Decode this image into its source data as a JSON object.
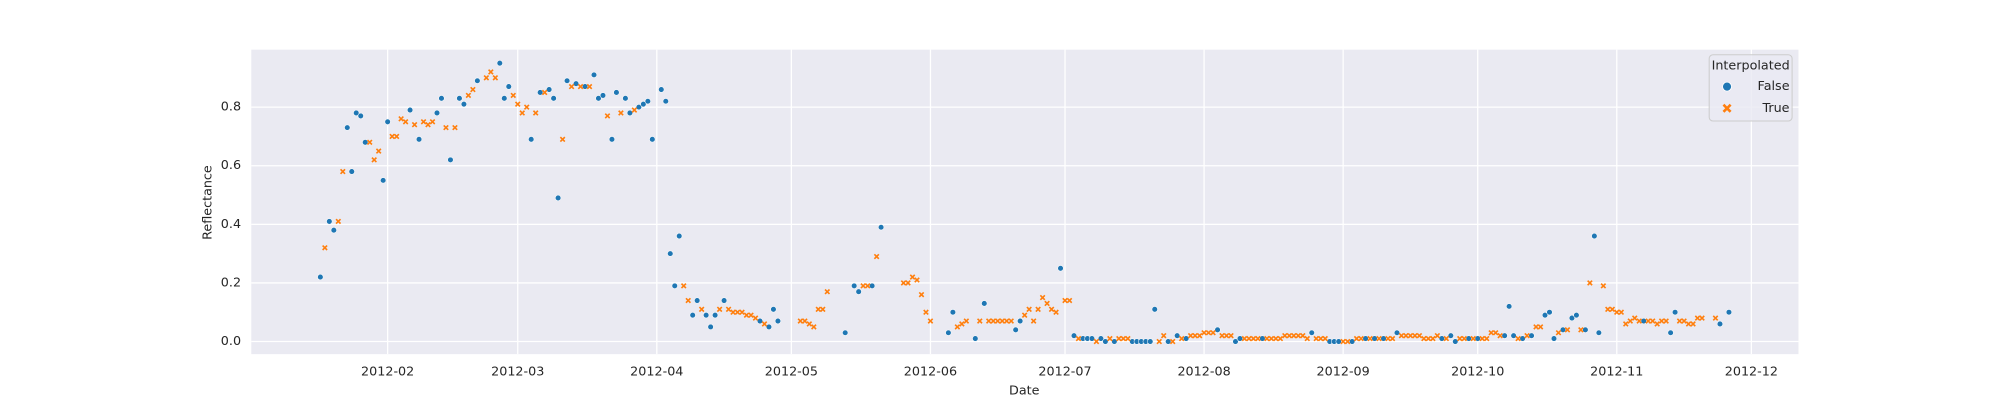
{
  "chart_data": {
    "type": "scatter",
    "xlabel": "Date",
    "ylabel": "Reflectance",
    "legend_title": "Interpolated",
    "legend": "upper right",
    "grid": true,
    "xlim": [
      15340.6,
      15685.5
    ],
    "xticks": [
      {
        "value": 15371,
        "label": "2012-02"
      },
      {
        "value": 15400,
        "label": "2012-03"
      },
      {
        "value": 15431,
        "label": "2012-04"
      },
      {
        "value": 15461,
        "label": "2012-05"
      },
      {
        "value": 15492,
        "label": "2012-06"
      },
      {
        "value": 15522,
        "label": "2012-07"
      },
      {
        "value": 15553,
        "label": "2012-08"
      },
      {
        "value": 15584,
        "label": "2012-09"
      },
      {
        "value": 15614,
        "label": "2012-10"
      },
      {
        "value": 15645,
        "label": "2012-11"
      },
      {
        "value": 15675,
        "label": "2012-12"
      }
    ],
    "ylim": [
      -0.043,
      0.996
    ],
    "yticks": [
      {
        "value": 0,
        "label": "0.0"
      },
      0.2,
      0.4,
      0.6,
      0.8
    ],
    "series": [
      {
        "name": "False",
        "color": "#1f77b4",
        "marker": "o",
        "x": [
          15356,
          15358,
          15359,
          15362,
          15363,
          15364,
          15365,
          15366,
          15370,
          15371,
          15376,
          15378,
          15382,
          15383,
          15385,
          15387,
          15388,
          15391,
          15396,
          15397,
          15398,
          15403,
          15405,
          15407,
          15408,
          15409,
          15411,
          15413,
          15415,
          15417,
          15418,
          15419,
          15421,
          15422,
          15424,
          15425,
          15427,
          15428,
          15429,
          15430,
          15432,
          15433,
          15434,
          15435,
          15436,
          15439,
          15440,
          15442,
          15443,
          15444,
          15446,
          15454,
          15456,
          15457,
          15458,
          15473,
          15475,
          15476,
          15479,
          15481,
          15496,
          15497,
          15502,
          15504,
          15511,
          15512,
          15521,
          15524,
          15526,
          15527,
          15528,
          15530,
          15531,
          15533,
          15537,
          15538,
          15539,
          15540,
          15541,
          15542,
          15545,
          15547,
          15549,
          15556,
          15560,
          15561,
          15566,
          15577,
          15581,
          15582,
          15583,
          15586,
          15589,
          15591,
          15593,
          15596,
          15606,
          15608,
          15609,
          15612,
          15614,
          15620,
          15621,
          15622,
          15624,
          15626,
          15629,
          15630,
          15631,
          15633,
          15635,
          15636,
          15638,
          15640,
          15641,
          15651,
          15657,
          15658,
          15668,
          15670
        ],
        "values": [
          0.22,
          0.41,
          0.38,
          0.73,
          0.58,
          0.78,
          0.77,
          0.68,
          0.55,
          0.75,
          0.79,
          0.69,
          0.78,
          0.83,
          0.62,
          0.83,
          0.81,
          0.89,
          0.95,
          0.83,
          0.87,
          0.69,
          0.85,
          0.86,
          0.83,
          0.49,
          0.89,
          0.88,
          0.87,
          0.91,
          0.83,
          0.84,
          0.69,
          0.85,
          0.83,
          0.78,
          0.8,
          0.81,
          0.82,
          0.69,
          0.86,
          0.82,
          0.3,
          0.19,
          0.36,
          0.09,
          0.14,
          0.09,
          0.05,
          0.09,
          0.14,
          0.07,
          0.05,
          0.11,
          0.07,
          0.03,
          0.19,
          0.17,
          0.19,
          0.39,
          0.03,
          0.1,
          0.01,
          0.13,
          0.04,
          0.07,
          0.25,
          0.02,
          0.01,
          0.01,
          0.01,
          0.01,
          0,
          0,
          0,
          0,
          0,
          0,
          0,
          0.11,
          0,
          0.02,
          0.01,
          0.04,
          0,
          0.01,
          0.01,
          0.03,
          0,
          0,
          0,
          0,
          0.01,
          0.01,
          0.01,
          0.03,
          0.01,
          0.02,
          0,
          0.01,
          0.01,
          0.02,
          0.12,
          0.02,
          0.01,
          0.02,
          0.09,
          0.1,
          0.01,
          0.04,
          0.08,
          0.09,
          0.04,
          0.36,
          0.03,
          0.07,
          0.03,
          0.1,
          0.06,
          0.1
        ]
      },
      {
        "name": "True",
        "color": "#ff7f0e",
        "marker": "X",
        "x": [
          15357,
          15360,
          15361,
          15367,
          15368,
          15369,
          15372,
          15373,
          15374,
          15375,
          15377,
          15379,
          15380,
          15381,
          15384,
          15386,
          15389,
          15390,
          15393,
          15394,
          15395,
          15399,
          15400,
          15401,
          15402,
          15404,
          15406,
          15410,
          15412,
          15414,
          15416,
          15420,
          15423,
          15426,
          15437,
          15438,
          15441,
          15445,
          15447,
          15448,
          15449,
          15450,
          15451,
          15452,
          15453,
          15455,
          15463,
          15464,
          15465,
          15466,
          15467,
          15468,
          15469,
          15477,
          15478,
          15480,
          15486,
          15487,
          15488,
          15489,
          15490,
          15491,
          15492,
          15498,
          15499,
          15500,
          15503,
          15505,
          15506,
          15507,
          15508,
          15509,
          15510,
          15513,
          15514,
          15515,
          15516,
          15517,
          15518,
          15519,
          15520,
          15522,
          15523,
          15525,
          15529,
          15532,
          15534,
          15535,
          15536,
          15543,
          15544,
          15546,
          15548,
          15550,
          15551,
          15552,
          15553,
          15554,
          15555,
          15557,
          15558,
          15559,
          15562,
          15563,
          15564,
          15565,
          15567,
          15568,
          15569,
          15570,
          15571,
          15572,
          15573,
          15574,
          15575,
          15576,
          15578,
          15579,
          15580,
          15584,
          15585,
          15587,
          15588,
          15590,
          15592,
          15594,
          15595,
          15597,
          15598,
          15599,
          15600,
          15601,
          15602,
          15603,
          15604,
          15605,
          15607,
          15610,
          15611,
          15613,
          15615,
          15616,
          15617,
          15618,
          15619,
          15623,
          15625,
          15627,
          15628,
          15632,
          15634,
          15637,
          15639,
          15642,
          15643,
          15644,
          15645,
          15646,
          15647,
          15648,
          15649,
          15650,
          15652,
          15653,
          15654,
          15655,
          15656,
          15659,
          15660,
          15661,
          15662,
          15663,
          15664,
          15667
        ],
        "values": [
          0.32,
          0.41,
          0.58,
          0.68,
          0.62,
          0.65,
          0.7,
          0.7,
          0.76,
          0.75,
          0.74,
          0.75,
          0.74,
          0.75,
          0.73,
          0.73,
          0.84,
          0.86,
          0.9,
          0.92,
          0.9,
          0.84,
          0.81,
          0.78,
          0.8,
          0.78,
          0.85,
          0.69,
          0.87,
          0.87,
          0.87,
          0.77,
          0.78,
          0.79,
          0.19,
          0.14,
          0.11,
          0.11,
          0.11,
          0.1,
          0.1,
          0.1,
          0.09,
          0.09,
          0.08,
          0.06,
          0.07,
          0.07,
          0.06,
          0.05,
          0.11,
          0.11,
          0.17,
          0.19,
          0.19,
          0.29,
          0.2,
          0.2,
          0.22,
          0.21,
          0.16,
          0.1,
          0.07,
          0.05,
          0.06,
          0.07,
          0.07,
          0.07,
          0.07,
          0.07,
          0.07,
          0.07,
          0.07,
          0.09,
          0.11,
          0.07,
          0.11,
          0.15,
          0.13,
          0.11,
          0.1,
          0.14,
          0.14,
          0.01,
          0,
          0.01,
          0.01,
          0.01,
          0.01,
          0,
          0.02,
          0,
          0.01,
          0.02,
          0.02,
          0.02,
          0.03,
          0.03,
          0.03,
          0.02,
          0.02,
          0.02,
          0.01,
          0.01,
          0.01,
          0.01,
          0.01,
          0.01,
          0.01,
          0.01,
          0.02,
          0.02,
          0.02,
          0.02,
          0.02,
          0.01,
          0.01,
          0.01,
          0.01,
          0,
          0,
          0.01,
          0.01,
          0.01,
          0.01,
          0.01,
          0.01,
          0.02,
          0.02,
          0.02,
          0.02,
          0.02,
          0.01,
          0.01,
          0.01,
          0.02,
          0.01,
          0.01,
          0.01,
          0.01,
          0.01,
          0.01,
          0.03,
          0.03,
          0.02,
          0.01,
          0.02,
          0.05,
          0.05,
          0.03,
          0.04,
          0.04,
          0.2,
          0.19,
          0.11,
          0.11,
          0.1,
          0.1,
          0.06,
          0.07,
          0.08,
          0.07,
          0.07,
          0.07,
          0.06,
          0.07,
          0.07,
          0.07,
          0.07,
          0.06,
          0.06,
          0.08,
          0.08,
          0.08
        ]
      }
    ]
  }
}
